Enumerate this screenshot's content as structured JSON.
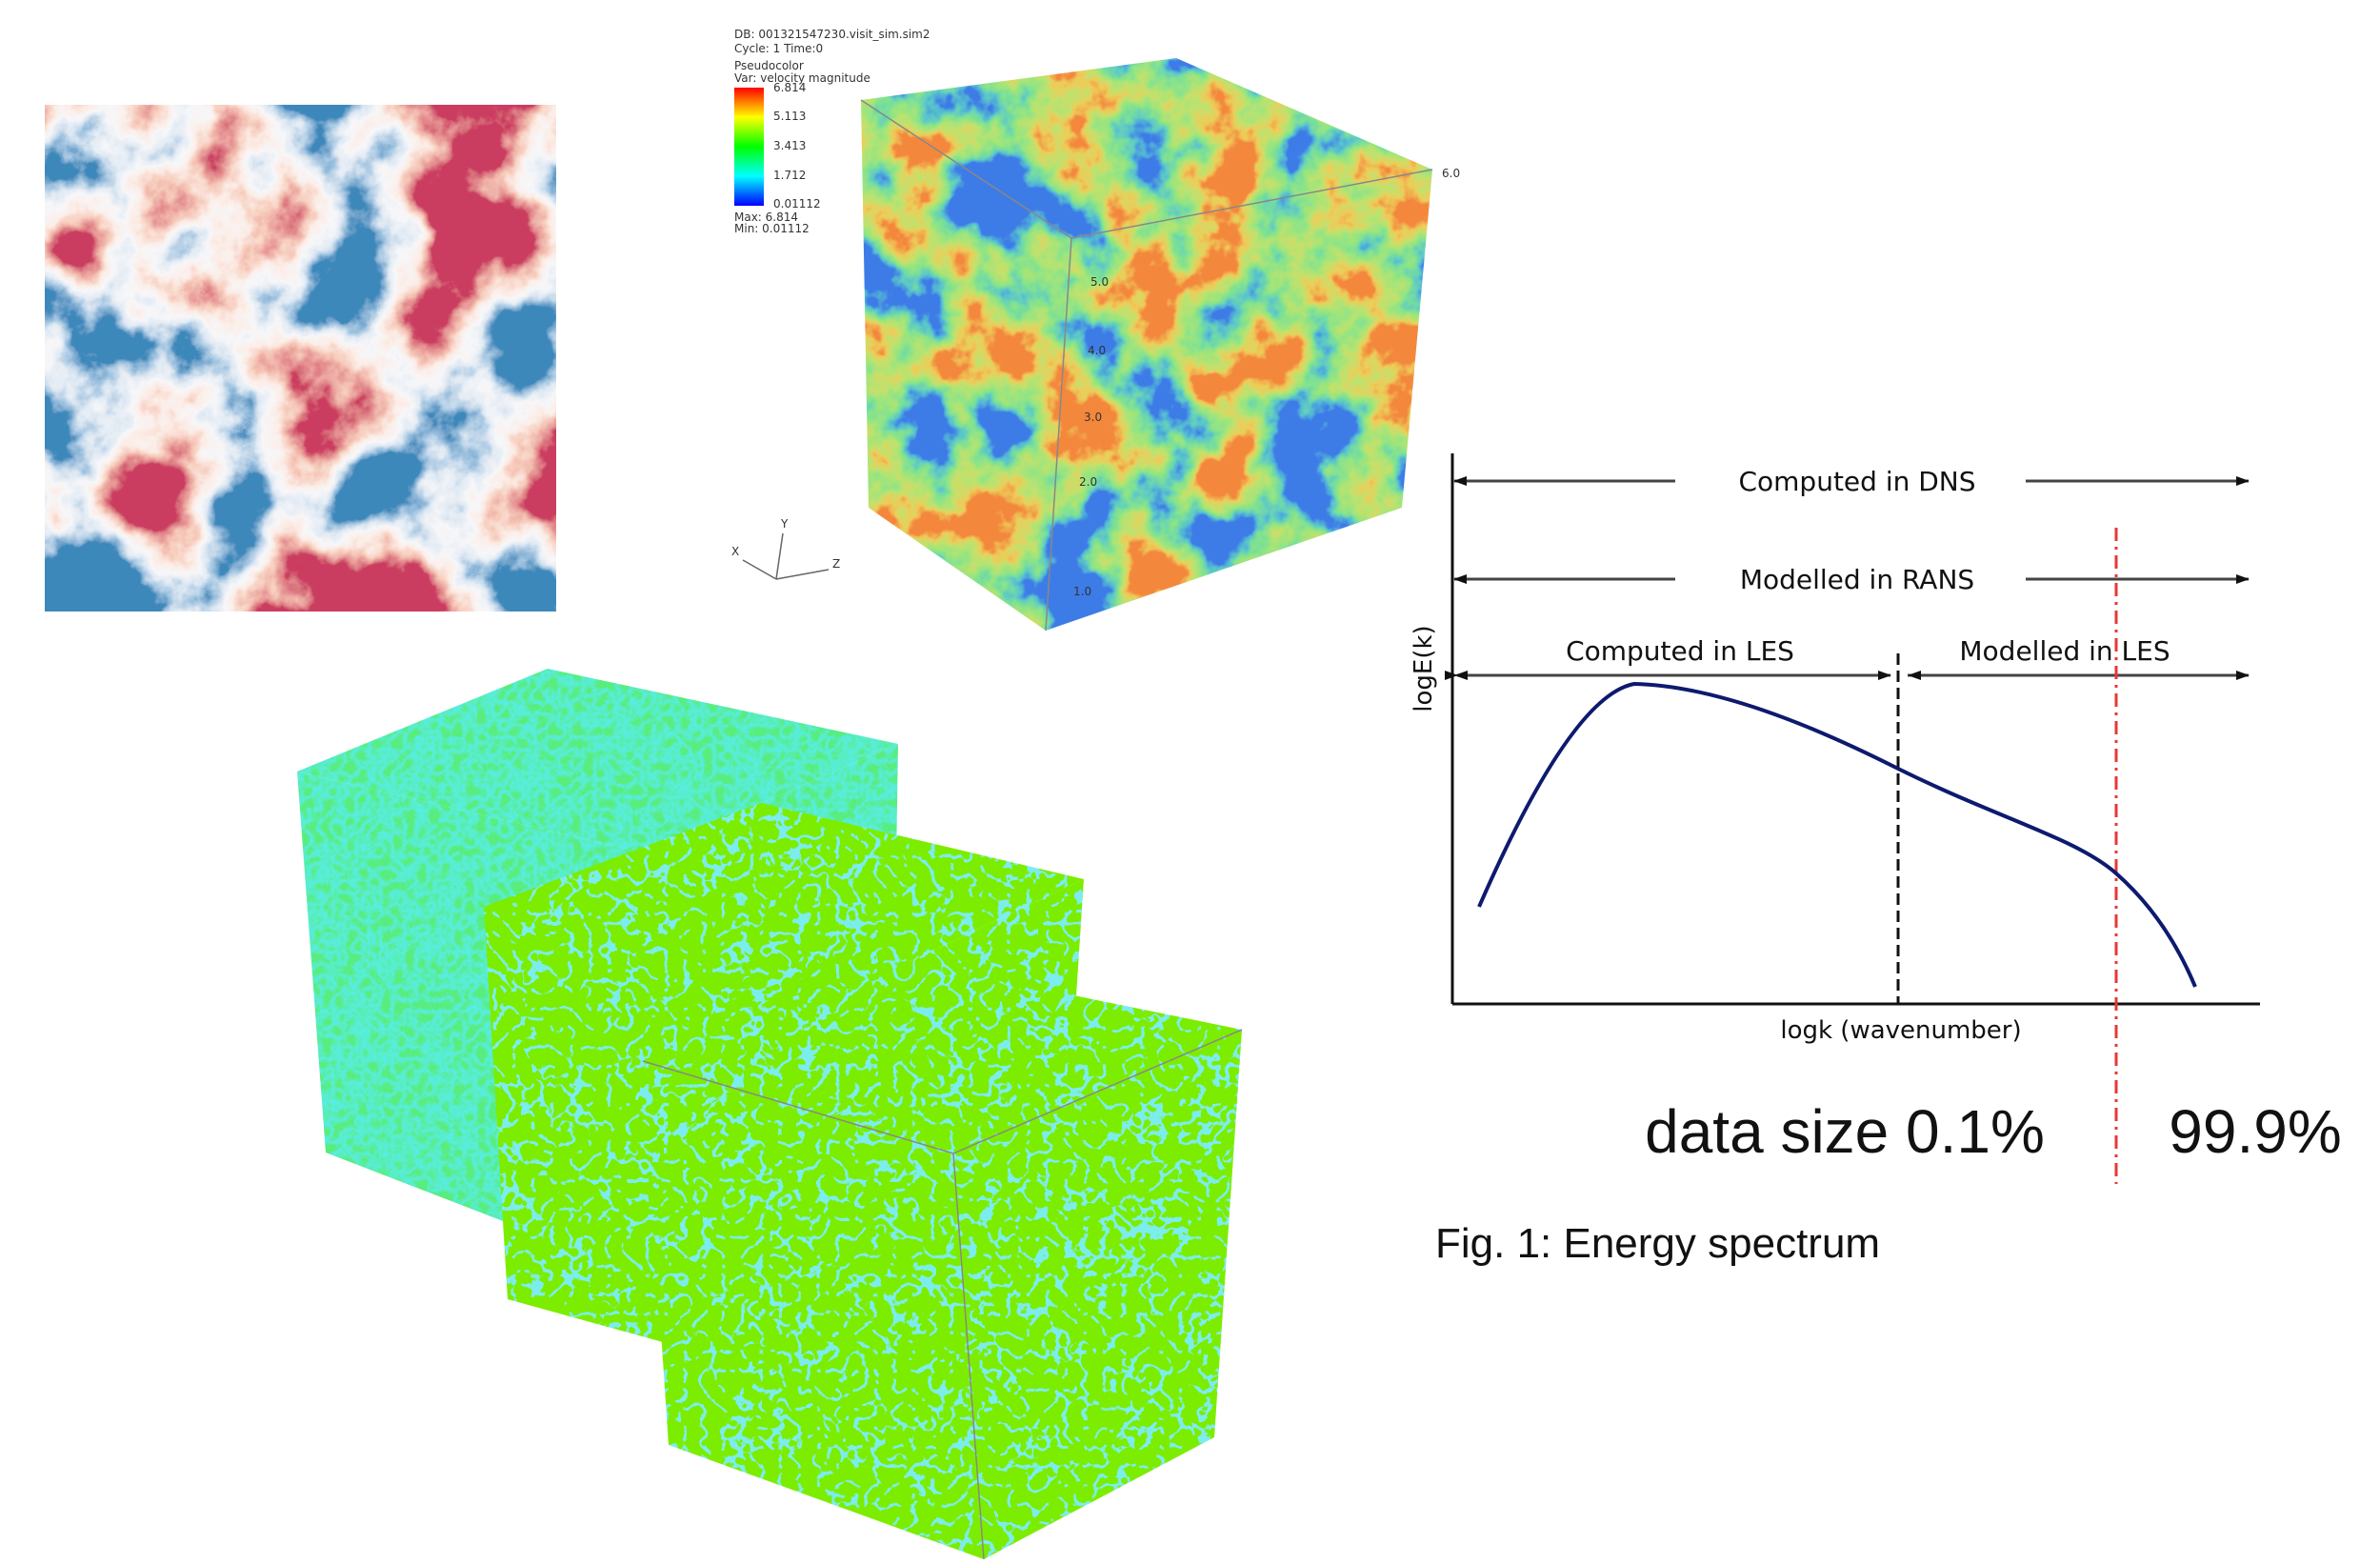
{
  "visit_panel": {
    "header_lines": [
      "DB: 001321547230.visit_sim.sim2",
      "Cycle: 1      Time:0"
    ],
    "plot_lines": [
      "Pseudocolor",
      "Var: velocity magnitude"
    ],
    "legend_ticks": [
      "6.814",
      "5.113",
      "3.413",
      "1.712",
      "0.01112"
    ],
    "max_label": "Max: 6.814",
    "min_label": "Min: 0.01112",
    "axis_triad": [
      "X",
      "Y",
      "Z"
    ],
    "cube_labels": [
      "6.0",
      "5.0",
      "4.0",
      "3.0",
      "2.0",
      "1.0"
    ]
  },
  "spectrum": {
    "dns_label": "Computed in DNS",
    "rans_label": "Modelled in RANS",
    "les_computed_label": "Computed in LES",
    "les_modelled_label": "Modelled in LES",
    "y_axis_label": "logE(k)",
    "x_axis_label": "logk (wavenumber)",
    "data_size_left": "data size 0.1%",
    "data_size_right": "99.9%",
    "caption": "Fig. 1: Energy spectrum"
  }
}
